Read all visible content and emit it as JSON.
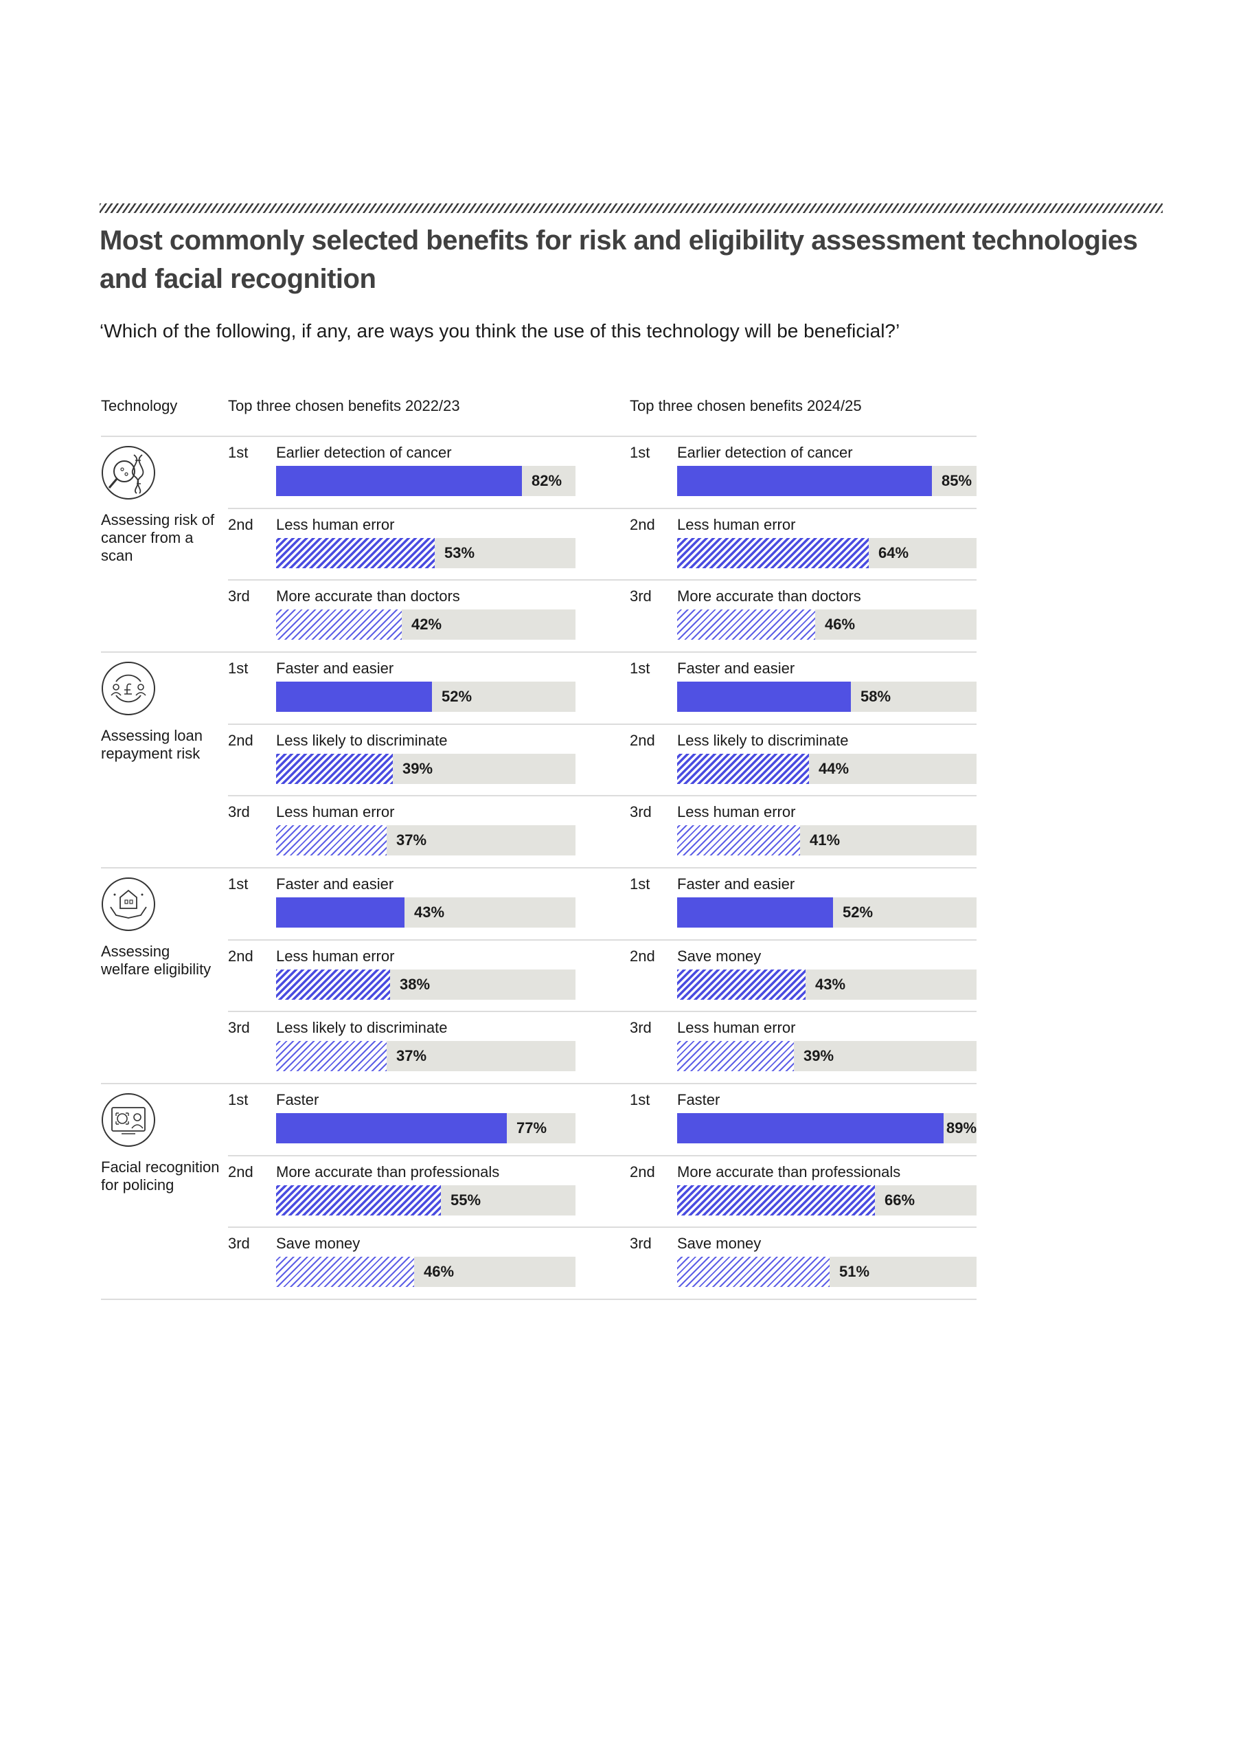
{
  "title": "Most commonly selected benefits for risk and eligibility assessment technologies and facial recognition",
  "question": "‘Which of the following, if any, are ways you think the use of this technology will be beneficial?’",
  "columns": {
    "technology": "Technology",
    "period_a": "Top three chosen benefits 2022/23",
    "period_b": "Top three chosen benefits 2024/25"
  },
  "colors": {
    "rank1": "#5051e3",
    "rank2_hatch": "#4a4ce0",
    "rank3_hatch": "#5d5fe6",
    "track": "#e3e3de",
    "divider": "#dcdcdc"
  },
  "chart_data": {
    "type": "bar",
    "orientation": "horizontal",
    "unit": "%",
    "xlim": [
      0,
      100
    ],
    "groups": [
      {
        "technology": "Assessing risk of cancer from a scan",
        "icon": "cancer-scan-icon",
        "period_a": [
          {
            "rank": "1st",
            "label": "Earlier detection of cancer",
            "value": 82
          },
          {
            "rank": "2nd",
            "label": "Less human error",
            "value": 53
          },
          {
            "rank": "3rd",
            "label": "More accurate than doctors",
            "value": 42
          }
        ],
        "period_b": [
          {
            "rank": "1st",
            "label": "Earlier detection of cancer",
            "value": 85
          },
          {
            "rank": "2nd",
            "label": "Less human error",
            "value": 64
          },
          {
            "rank": "3rd",
            "label": "More accurate than doctors",
            "value": 46
          }
        ]
      },
      {
        "technology": "Assessing loan repayment risk",
        "icon": "loan-repayment-icon",
        "period_a": [
          {
            "rank": "1st",
            "label": "Faster and easier",
            "value": 52
          },
          {
            "rank": "2nd",
            "label": "Less likely to discriminate",
            "value": 39
          },
          {
            "rank": "3rd",
            "label": "Less human error",
            "value": 37
          }
        ],
        "period_b": [
          {
            "rank": "1st",
            "label": "Faster and easier",
            "value": 58
          },
          {
            "rank": "2nd",
            "label": "Less likely to discriminate",
            "value": 44
          },
          {
            "rank": "3rd",
            "label": "Less human error",
            "value": 41
          }
        ]
      },
      {
        "technology": "Assessing welfare eligibility",
        "icon": "welfare-eligibility-icon",
        "period_a": [
          {
            "rank": "1st",
            "label": "Faster and easier",
            "value": 43
          },
          {
            "rank": "2nd",
            "label": "Less human error",
            "value": 38
          },
          {
            "rank": "3rd",
            "label": "Less likely to discriminate",
            "value": 37
          }
        ],
        "period_b": [
          {
            "rank": "1st",
            "label": "Faster and easier",
            "value": 52
          },
          {
            "rank": "2nd",
            "label": "Save money",
            "value": 43
          },
          {
            "rank": "3rd",
            "label": "Less human error",
            "value": 39
          }
        ]
      },
      {
        "technology": "Facial recognition for policing",
        "icon": "facial-recognition-icon",
        "period_a": [
          {
            "rank": "1st",
            "label": "Faster",
            "value": 77
          },
          {
            "rank": "2nd",
            "label": "More accurate than professionals",
            "value": 55
          },
          {
            "rank": "3rd",
            "label": "Save money",
            "value": 46
          }
        ],
        "period_b": [
          {
            "rank": "1st",
            "label": "Faster",
            "value": 89
          },
          {
            "rank": "2nd",
            "label": "More accurate than professionals",
            "value": 66
          },
          {
            "rank": "3rd",
            "label": "Save money",
            "value": 51
          }
        ]
      }
    ]
  }
}
